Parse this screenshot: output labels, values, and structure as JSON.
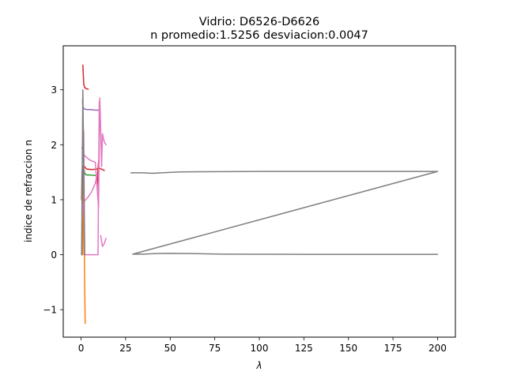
{
  "chart_data": {
    "type": "line",
    "title": "Vidrio: D6526-D6626",
    "subtitle": "n promedio:1.5256 desviacion:0.0047",
    "xlabel": "λ",
    "ylabel": "indice de refraccion n",
    "xlim": [
      -10,
      210
    ],
    "ylim": [
      -1.5,
      3.8
    ],
    "xticks": [
      0,
      25,
      50,
      75,
      100,
      125,
      150,
      175,
      200
    ],
    "xtick_labels": [
      "0",
      "25",
      "50",
      "75",
      "100",
      "125",
      "150",
      "175",
      "200"
    ],
    "yticks": [
      -1,
      0,
      1,
      2,
      3
    ],
    "ytick_labels": [
      "−1",
      "0",
      "1",
      "2",
      "3"
    ],
    "grid": false,
    "series": [
      {
        "color": "#1f77b4",
        "x": [
          0.5,
          0.8,
          1.0,
          1.3,
          1.6,
          2.0,
          2.5
        ],
        "y": [
          0.0,
          0.6,
          1.5,
          1.55,
          1.5,
          1.48,
          1.47
        ]
      },
      {
        "color": "#ff7f0e",
        "x": [
          1.0,
          1.2,
          1.5,
          1.8,
          2.0,
          2.3
        ],
        "y": [
          0.0,
          0.8,
          1.5,
          0.2,
          -0.5,
          -1.25
        ]
      },
      {
        "color": "#2ca02c",
        "x": [
          1.0,
          1.5,
          2.0,
          3.0,
          5.0,
          8.0,
          9.5
        ],
        "y": [
          1.9,
          1.6,
          1.48,
          1.45,
          1.45,
          1.44,
          1.43
        ]
      },
      {
        "color": "#d62728",
        "x": [
          1.0,
          1.5,
          2.0,
          3.0,
          4.0
        ],
        "y": [
          3.45,
          3.1,
          3.04,
          3.02,
          3.01
        ]
      },
      {
        "color": "#d62728",
        "x": [
          2.0,
          3.0,
          5.0,
          7.0,
          9.0,
          10.0,
          11.0,
          12.0,
          13.0
        ],
        "y": [
          1.6,
          1.56,
          1.55,
          1.55,
          1.56,
          1.58,
          1.56,
          1.55,
          1.53
        ]
      },
      {
        "color": "#d62728",
        "x": [
          9.0,
          9.3,
          9.6,
          9.9
        ],
        "y": [
          1.2,
          1.45,
          1.6,
          1.72
        ]
      },
      {
        "color": "#9467bd",
        "x": [
          0.8,
          1.0,
          1.5,
          2.0,
          3.0,
          5.0,
          8.0,
          10.0
        ],
        "y": [
          2.82,
          2.7,
          2.66,
          2.65,
          2.64,
          2.64,
          2.63,
          2.63
        ]
      },
      {
        "color": "#9467bd",
        "x": [
          0.6,
          0.8,
          1.0,
          1.3,
          1.6
        ],
        "y": [
          1.4,
          1.55,
          1.6,
          1.5,
          1.35
        ]
      },
      {
        "color": "#8c564b",
        "x": [
          0.3,
          0.5,
          0.8,
          1.0
        ],
        "y": [
          1.0,
          1.45,
          1.62,
          1.55
        ]
      },
      {
        "color": "#e377c2",
        "x": [
          0.5,
          1.0,
          2.0,
          5.0,
          8.0,
          9.8,
          10.5,
          11.0,
          11.5,
          12.0,
          13.0,
          14.0
        ],
        "y": [
          1.95,
          1.88,
          1.8,
          1.72,
          1.68,
          0.85,
          2.85,
          2.3,
          1.6,
          2.2,
          2.05,
          2.0
        ]
      },
      {
        "color": "#e377c2",
        "x": [
          0.5,
          1.0,
          2.0,
          4.0,
          6.0,
          8.0,
          9.0
        ],
        "y": [
          0.6,
          0.9,
          0.98,
          1.05,
          1.15,
          1.3,
          1.45
        ]
      },
      {
        "color": "#e377c2",
        "x": [
          1.5,
          2.0,
          4.0,
          6.0,
          8.0,
          9.5,
          10.2
        ],
        "y": [
          2.25,
          0.0,
          0.0,
          0.0,
          0.0,
          0.0,
          2.78
        ]
      },
      {
        "color": "#e377c2",
        "x": [
          11.0,
          12.0,
          13.0,
          14.0
        ],
        "y": [
          0.35,
          0.15,
          0.2,
          0.3
        ]
      },
      {
        "color": "#7f7f7f",
        "x": [
          0.3,
          0.6,
          1.0,
          1.5,
          2.0
        ],
        "y": [
          0.0,
          1.3,
          3.0,
          1.5,
          0.0
        ]
      },
      {
        "color": "#7f7f7f",
        "x": [
          28,
          35,
          40,
          45,
          55,
          70,
          100,
          130,
          160,
          200,
          29,
          35,
          42,
          50,
          60,
          80,
          100,
          130,
          160,
          200
        ],
        "y": [
          1.49,
          1.49,
          1.48,
          1.49,
          1.505,
          1.51,
          1.515,
          1.515,
          1.515,
          1.515,
          0.01,
          0.01,
          0.02,
          0.025,
          0.02,
          0.01,
          0.008,
          0.007,
          0.007,
          0.007
        ]
      }
    ]
  }
}
